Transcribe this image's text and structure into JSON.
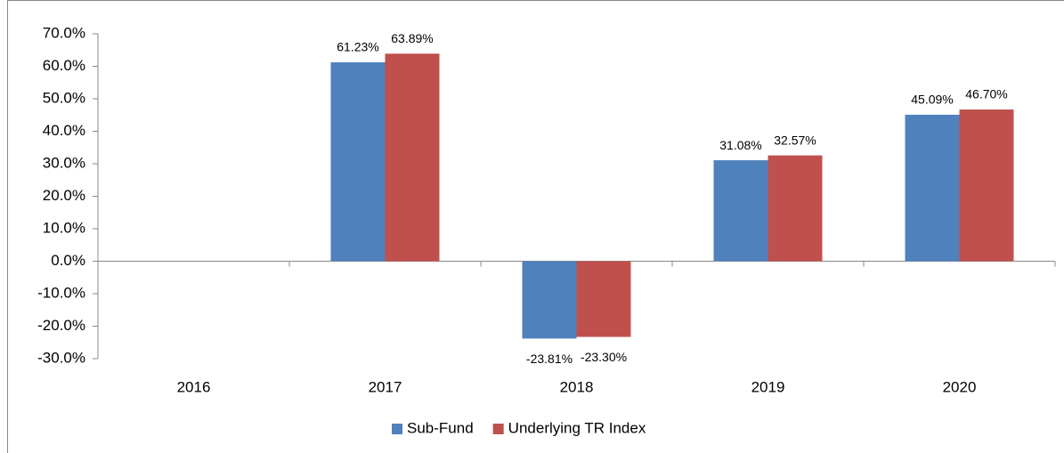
{
  "chart_data": {
    "type": "bar",
    "categories": [
      "2016",
      "2017",
      "2018",
      "2019",
      "2020"
    ],
    "series": [
      {
        "name": "Sub-Fund",
        "color": "#4f81bd",
        "values": [
          null,
          61.23,
          -23.81,
          31.08,
          45.09
        ],
        "value_labels": [
          null,
          "61.23%",
          "-23.81%",
          "31.08%",
          "45.09%"
        ]
      },
      {
        "name": "Underlying TR Index",
        "color": "#c0504d",
        "values": [
          null,
          63.89,
          -23.3,
          32.57,
          46.7
        ],
        "value_labels": [
          null,
          "63.89%",
          "-23.30%",
          "32.57%",
          "46.70%"
        ]
      }
    ],
    "ylim": [
      -30,
      70
    ],
    "yticks": [
      {
        "value": -30,
        "label": "-30.0%"
      },
      {
        "value": -20,
        "label": "-20.0%"
      },
      {
        "value": -10,
        "label": "-10.0%"
      },
      {
        "value": 0,
        "label": "0.0%"
      },
      {
        "value": 10,
        "label": "10.0%"
      },
      {
        "value": 20,
        "label": "20.0%"
      },
      {
        "value": 30,
        "label": "30.0%"
      },
      {
        "value": 40,
        "label": "40.0%"
      },
      {
        "value": 50,
        "label": "50.0%"
      },
      {
        "value": 60,
        "label": "60.0%"
      },
      {
        "value": 70,
        "label": "70.0%"
      }
    ],
    "legend": "bottom"
  }
}
